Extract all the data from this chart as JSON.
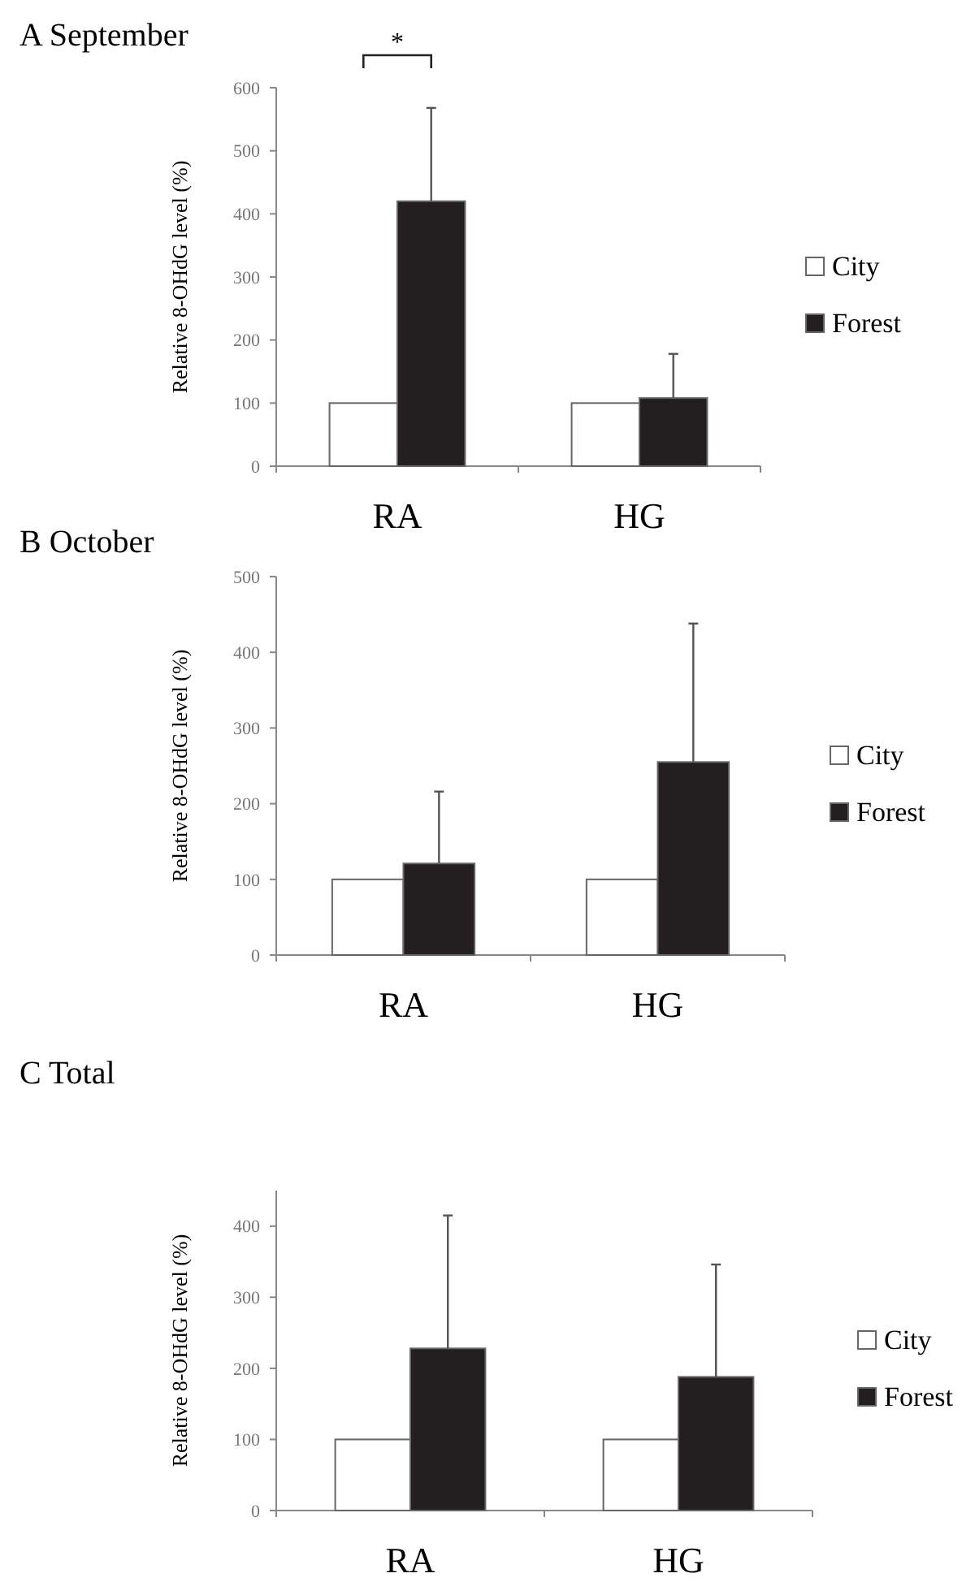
{
  "chart_data": [
    {
      "type": "bar",
      "title": "A September",
      "ylabel": "Relative 8-OHdG level (%)",
      "categories": [
        "RA",
        "HG"
      ],
      "ylim": [
        0,
        600
      ],
      "yticks": [
        0,
        100,
        200,
        300,
        400,
        500,
        600
      ],
      "legend": "right",
      "annotations": [
        "*"
      ],
      "series": [
        {
          "name": "City",
          "color": "#ffffff",
          "values": [
            100,
            100
          ]
        },
        {
          "name": "Forest",
          "color": "#231f20",
          "values": [
            420,
            108
          ],
          "errors": [
            [
              420,
              568
            ],
            [
              108,
              178
            ]
          ]
        }
      ]
    },
    {
      "type": "bar",
      "title": "B October",
      "ylabel": "Relative 8-OHdG level (%)",
      "categories": [
        "RA",
        "HG"
      ],
      "ylim": [
        0,
        500
      ],
      "yticks": [
        0,
        100,
        200,
        300,
        400,
        500
      ],
      "legend": "right",
      "series": [
        {
          "name": "City",
          "color": "#ffffff",
          "values": [
            100,
            100
          ]
        },
        {
          "name": "Forest",
          "color": "#231f20",
          "values": [
            121,
            255
          ],
          "errors": [
            [
              121,
              216
            ],
            [
              255,
              438
            ]
          ]
        }
      ]
    },
    {
      "type": "bar",
      "title": "C Total",
      "ylabel": "Relative 8-OHdG level (%)",
      "categories": [
        "RA",
        "HG"
      ],
      "ylim": [
        0,
        450
      ],
      "yticks": [
        0,
        100,
        200,
        300,
        400
      ],
      "legend": "right",
      "series": [
        {
          "name": "City",
          "color": "#ffffff",
          "values": [
            100,
            100
          ]
        },
        {
          "name": "Forest",
          "color": "#231f20",
          "values": [
            228,
            188
          ],
          "errors": [
            [
              228,
              415
            ],
            [
              188,
              346
            ]
          ]
        }
      ]
    }
  ]
}
